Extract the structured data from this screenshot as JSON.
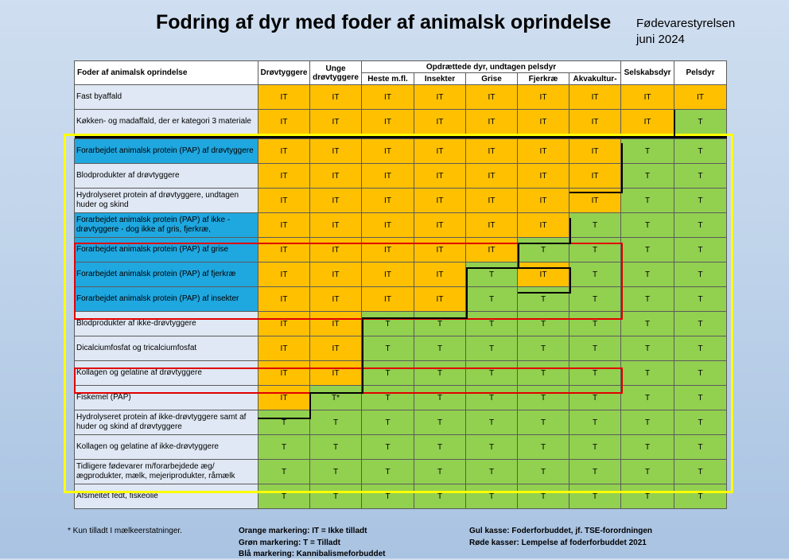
{
  "title": "Fodring af dyr med foder af animalsk oprindelse",
  "agency": {
    "name": "Fødevarestyrelsen",
    "date": "juni 2024"
  },
  "table": {
    "header": {
      "first": "Foder af animalsk oprindelse",
      "druv": "Drøvtyggere",
      "unge": "Unge drøvtyggere",
      "group": "Opdrættede dyr, undtagen pelsdyr",
      "sub": [
        "Heste m.fl.",
        "Insekter",
        "Grise",
        "Fjerkræ",
        "Akvakultur-"
      ],
      "selskab": "Selskabsdyr",
      "pels": "Pelsdyr"
    },
    "rows": [
      {
        "label": "Fast byaffald",
        "blue": false,
        "cells": [
          "IT",
          "IT",
          "IT",
          "IT",
          "IT",
          "IT",
          "IT",
          "IT",
          "IT"
        ]
      },
      {
        "label": "Køkken- og madaffald, der er kategori 3 materiale",
        "blue": false,
        "cells": [
          "IT",
          "IT",
          "IT",
          "IT",
          "IT",
          "IT",
          "IT",
          "IT",
          "T"
        ]
      },
      {
        "label": "Forarbejdet animalsk protein (PAP) af drøvtyggere",
        "blue": true,
        "cells": [
          "IT",
          "IT",
          "IT",
          "IT",
          "IT",
          "IT",
          "IT",
          "T",
          "T"
        ]
      },
      {
        "label": "Blodprodukter af drøvtyggere",
        "blue": false,
        "cells": [
          "IT",
          "IT",
          "IT",
          "IT",
          "IT",
          "IT",
          "IT",
          "T",
          "T"
        ]
      },
      {
        "label": "Hydrolyseret protein af drøvtyggere, undtagen huder og skind",
        "blue": false,
        "cells": [
          "IT",
          "IT",
          "IT",
          "IT",
          "IT",
          "IT",
          "IT",
          "T",
          "T"
        ]
      },
      {
        "label": "Forarbejdet animalsk protein (PAP) af ikke - drøvtyggere - dog ikke af gris, fjerkræ,",
        "blue": true,
        "cells": [
          "IT",
          "IT",
          "IT",
          "IT",
          "IT",
          "IT",
          "T",
          "T",
          "T"
        ]
      },
      {
        "label": "Forarbejdet animalsk protein (PAP) af grise",
        "blue": true,
        "cells": [
          "IT",
          "IT",
          "IT",
          "IT",
          "IT",
          "T",
          "T",
          "T",
          "T"
        ]
      },
      {
        "label": "Forarbejdet animalsk protein (PAP) af fjerkræ",
        "blue": true,
        "cells": [
          "IT",
          "IT",
          "IT",
          "IT",
          "T",
          "IT",
          "T",
          "T",
          "T"
        ]
      },
      {
        "label": "Forarbejdet animalsk protein (PAP) af insekter",
        "blue": true,
        "cells": [
          "IT",
          "IT",
          "IT",
          "IT",
          "T",
          "T",
          "T",
          "T",
          "T"
        ]
      },
      {
        "label": "Blodprodukter af ikke-drøvtyggere",
        "blue": false,
        "cells": [
          "IT",
          "IT",
          "T",
          "T",
          "T",
          "T",
          "T",
          "T",
          "T"
        ]
      },
      {
        "label": "Dicalciumfosfat og tricalciumfosfat",
        "blue": false,
        "cells": [
          "IT",
          "IT",
          "T",
          "T",
          "T",
          "T",
          "T",
          "T",
          "T"
        ]
      },
      {
        "label": "Kollagen og gelatine af drøvtyggere",
        "blue": false,
        "cells": [
          "IT",
          "IT",
          "T",
          "T",
          "T",
          "T",
          "T",
          "T",
          "T"
        ]
      },
      {
        "label": "Fiskemel (PAP)",
        "blue": false,
        "cells": [
          "IT",
          "T*",
          "T",
          "T",
          "T",
          "T",
          "T",
          "T",
          "T"
        ]
      },
      {
        "label": "Hydrolyseret protein af ikke-drøvtyggere samt af huder og skind af drøvtyggere",
        "blue": false,
        "cells": [
          "T",
          "T",
          "T",
          "T",
          "T",
          "T",
          "T",
          "T",
          "T"
        ]
      },
      {
        "label": "Kollagen og gelatine af ikke-drøvtyggere",
        "blue": false,
        "cells": [
          "T",
          "T",
          "T",
          "T",
          "T",
          "T",
          "T",
          "T",
          "T"
        ]
      },
      {
        "label": "Tidligere fødevarer m/forarbejdede æg/ ægprodukter, mælk, mejeriprodukter, råmælk",
        "blue": false,
        "cells": [
          "T",
          "T",
          "T",
          "T",
          "T",
          "T",
          "T",
          "T",
          "T"
        ]
      },
      {
        "label": "Afsmeltet fedt, fiskeolie",
        "blue": false,
        "cells": [
          "T",
          "T",
          "T",
          "T",
          "T",
          "T",
          "T",
          "T",
          "T"
        ]
      }
    ]
  },
  "colors": {
    "orange": "#ffc000",
    "green": "#92d050",
    "blue": "#1fa7e0",
    "yellow_box": "#ffff00",
    "red_box": "#e00000"
  },
  "footer": {
    "note": "* Kun tilladt I mælkeerstatninger.",
    "orange": "Orange markering: IT = Ikke tilladt",
    "green": "Grøn markering: T = Tilladt",
    "blue": "Blå markering: Kannibalismeforbuddet",
    "yellow": "Gul kasse: Foderforbuddet, jf. TSE-forordningen",
    "red": "Røde kasser: Lempelse af foderforbuddet 2021"
  }
}
